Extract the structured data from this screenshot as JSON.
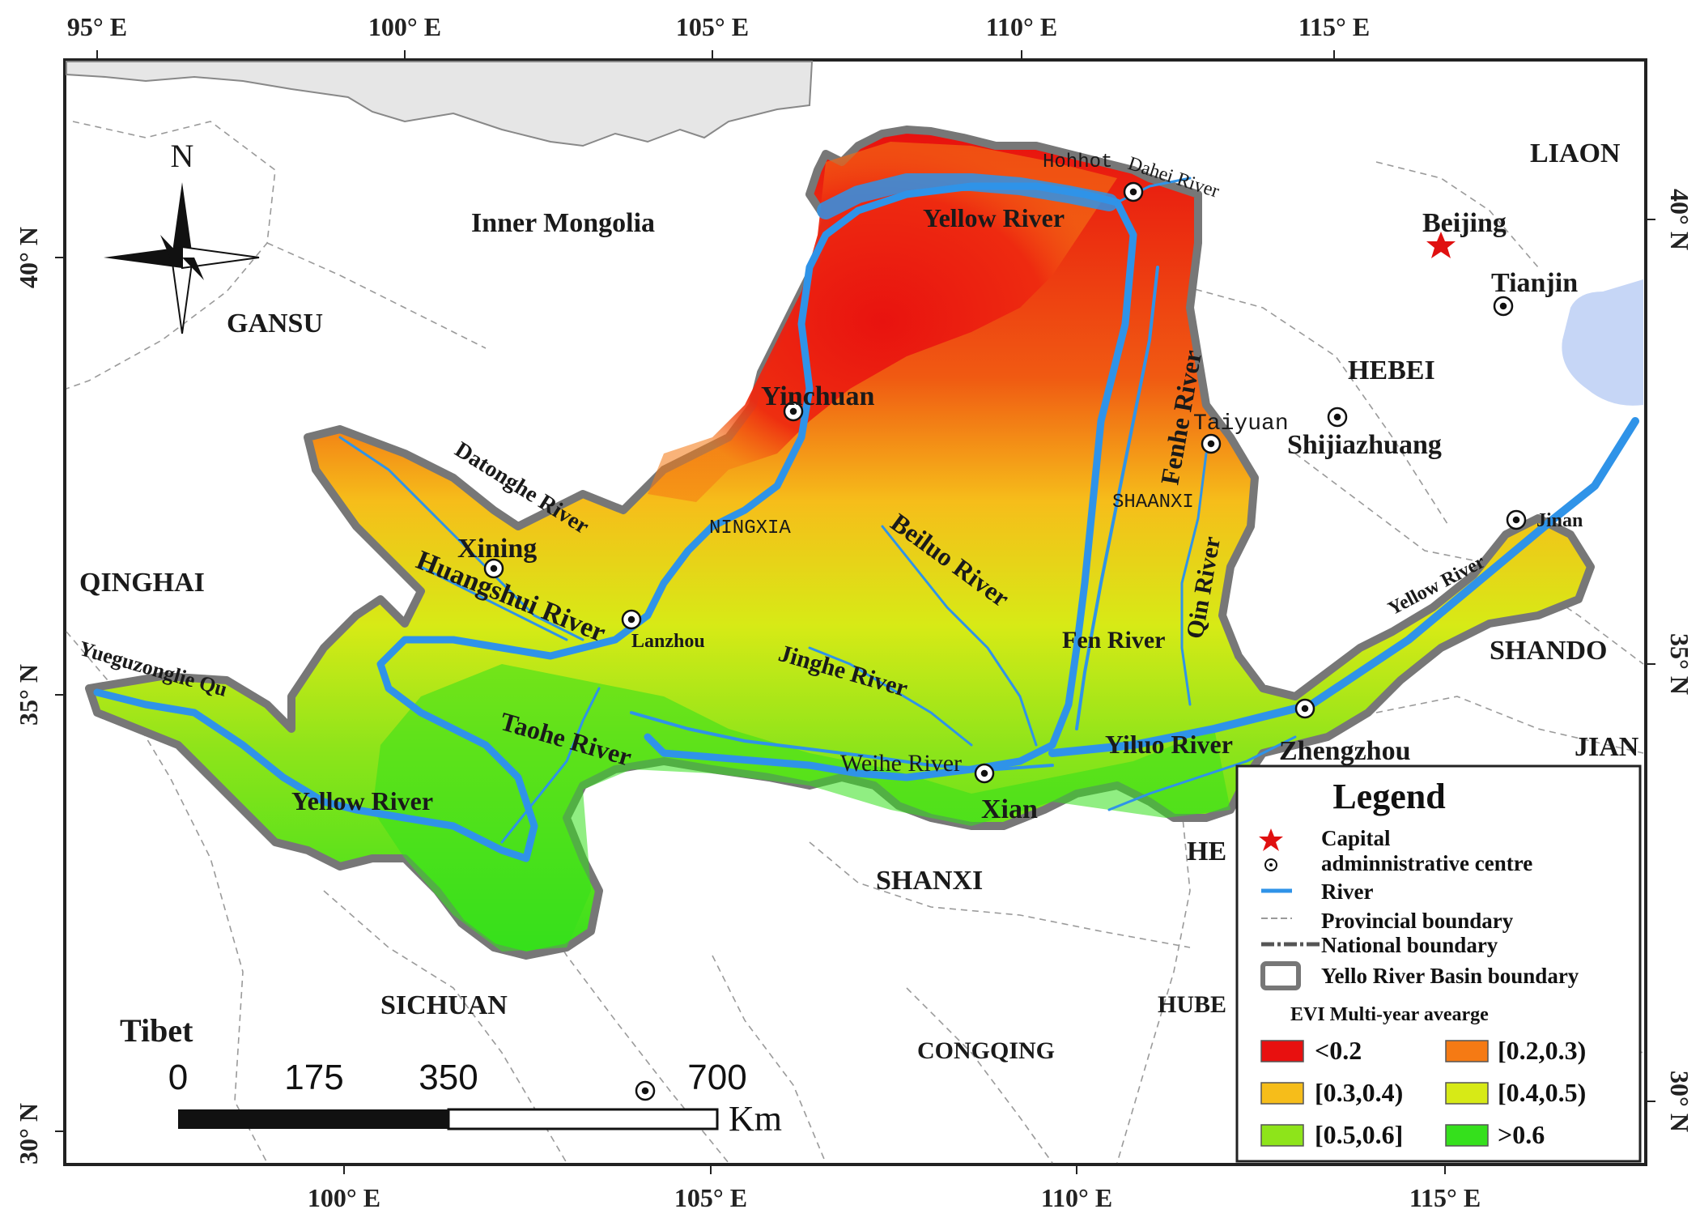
{
  "axes": {
    "top_lon": [
      "95° E",
      "100° E",
      "105° E",
      "110° E",
      "115° E"
    ],
    "bottom_lon": [
      "100° E",
      "105° E",
      "110° E",
      "115° E"
    ],
    "left_lat": [
      "40° N",
      "35° N",
      "30° N"
    ],
    "right_lat": [
      "40° N",
      "35° N",
      "30° N"
    ]
  },
  "compass": {
    "north": "N"
  },
  "regions": {
    "inner_mongolia": "Inner Mongolia",
    "gansu": "GANSU",
    "qinghai": "QINGHAI",
    "sichuan": "SICHUAN",
    "tibet": "Tibet",
    "shanxi_south": "SHANXI",
    "congqing": "CONGQING",
    "hebei": "HEBEI",
    "liaon": "LIAON",
    "shando": "SHANDO",
    "jian": "JIAN",
    "hube": "HUBE",
    "he": "HE",
    "ningxia": "NINGXIA",
    "shaanxi": "SHAANXI"
  },
  "cities": {
    "beijing": "Beijing",
    "tianjin": "Tianjin",
    "shijiazhuang": "Shijiazhuang",
    "hohhot": "Hohhot",
    "taiyuan": "Taiyuan",
    "jinan": "Jinan",
    "zhengzhou": "Zhengzhou",
    "xian": "Xian",
    "lanzhou": "Lanzhou",
    "xining": "Xining",
    "yinchuan": "Yinchuan"
  },
  "rivers": {
    "yellow_north": "Yellow River",
    "yellow_south": "Yellow River",
    "yellow_east": "Yellow River",
    "dahei": "Dahei River",
    "fenhe": "Fenhe River",
    "datonghe": "Datonghe River",
    "huangshui": "Huangshui River",
    "beiluo": "Beiluo River",
    "jinghe": "Jinghe River",
    "qin": "Qin River",
    "fen": "Fen River",
    "taohe": "Taohe River",
    "weihe": "Weihe River",
    "yiluo": "Yiluo River",
    "yueguzonglie": "Yueguzonglie Qu"
  },
  "scale_bar": {
    "labels": [
      "0",
      "175",
      "350",
      "700"
    ],
    "unit": "Km"
  },
  "legend": {
    "title": "Legend",
    "items": [
      "Capital",
      "adminnistrative centre",
      "River",
      "Provincial boundary",
      "National boundary",
      "Yello River Basin boundary"
    ],
    "evi_title": "EVI Multi-year avearge",
    "classes": [
      {
        "label": "<0.2",
        "color": "#e8100f"
      },
      {
        "label": "[0.2,0.3)",
        "color": "#f57a14"
      },
      {
        "label": "[0.3,0.4)",
        "color": "#f6bd1a"
      },
      {
        "label": "[0.4,0.5)",
        "color": "#d7ea16"
      },
      {
        "label": "[0.5,0.6]",
        "color": "#8ee41a"
      },
      {
        "label": ">0.6",
        "color": "#35e01c"
      }
    ]
  },
  "colors": {
    "river": "#2f93e8",
    "basin_boundary": "#777777",
    "sea": "#c6d6f6",
    "capital": "#e01010"
  }
}
